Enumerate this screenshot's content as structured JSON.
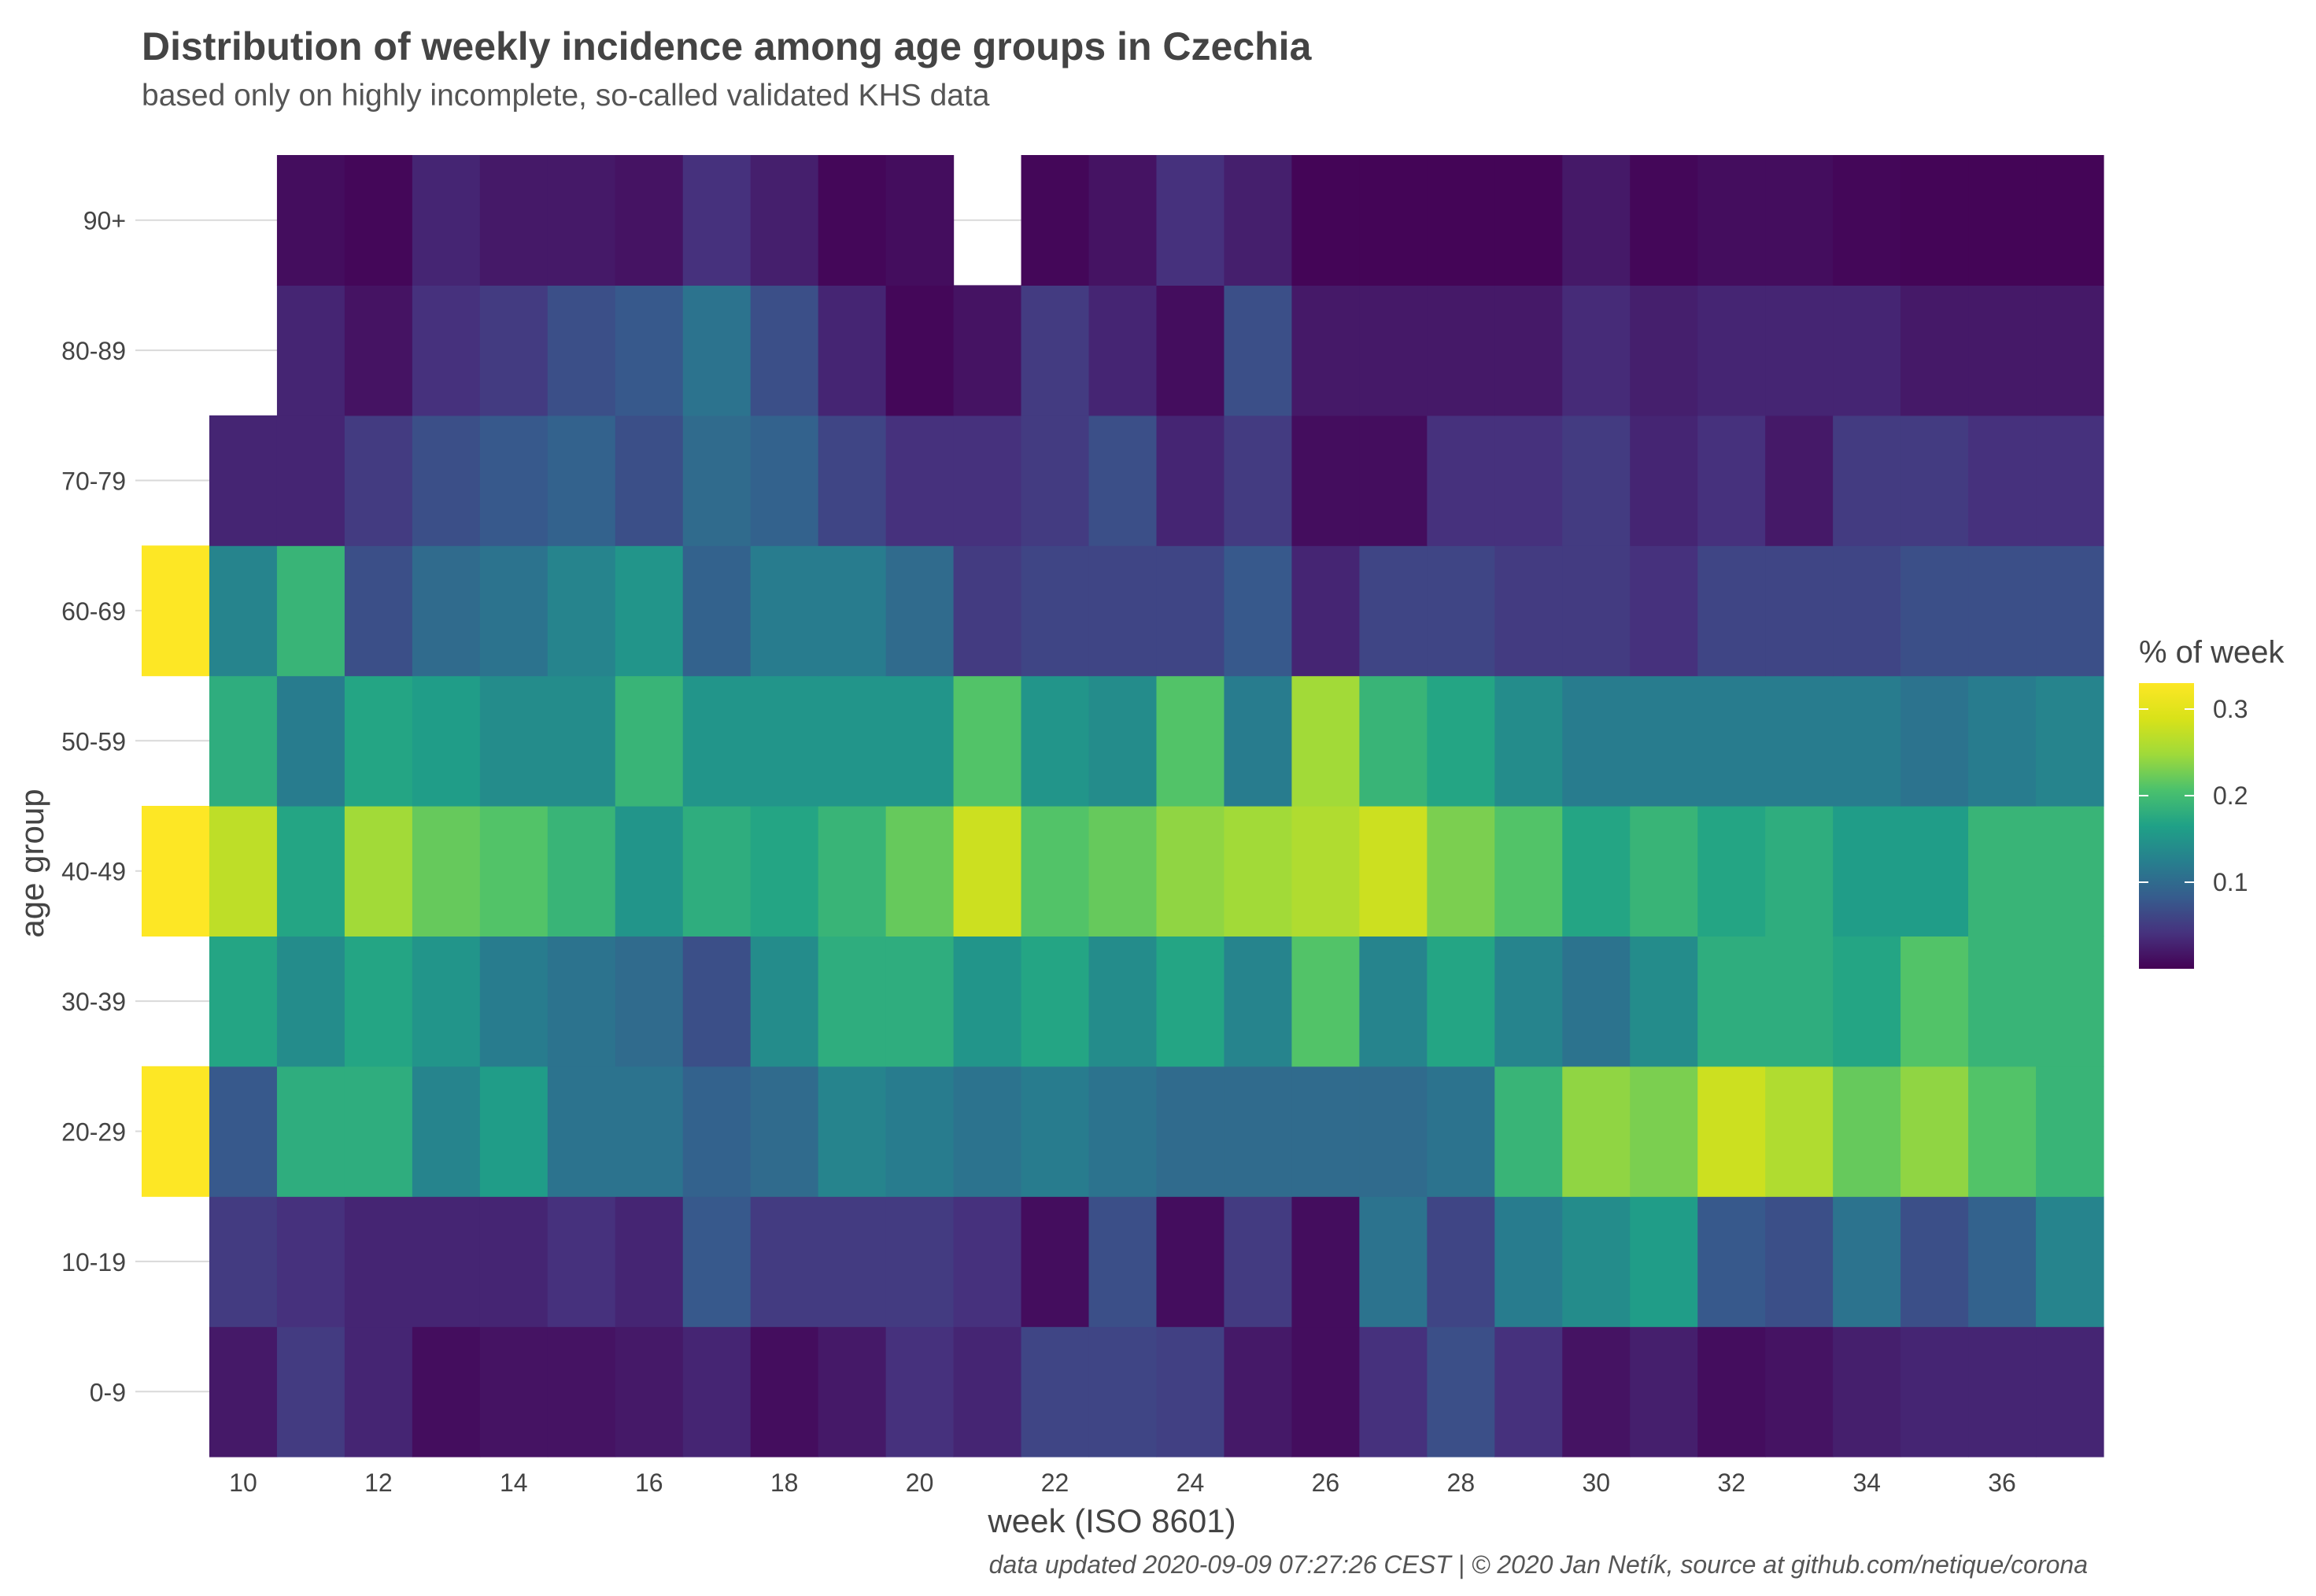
{
  "chart_data": {
    "type": "heatmap",
    "title": "Distribution of weekly incidence among age groups in Czechia",
    "subtitle": "based only on highly incomplete, so-called validated KHS data",
    "xlabel": "week (ISO 8601)",
    "ylabel": "age group",
    "caption": "data updated 2020-09-09 07:27:26 CEST  |  © 2020 Jan Netík, source at github.com/netique/corona",
    "x": [
      9,
      10,
      11,
      12,
      13,
      14,
      15,
      16,
      17,
      18,
      19,
      20,
      21,
      22,
      23,
      24,
      25,
      26,
      27,
      28,
      29,
      30,
      31,
      32,
      33,
      34,
      35,
      36,
      37
    ],
    "x_ticks": [
      10,
      12,
      14,
      16,
      18,
      20,
      22,
      24,
      26,
      28,
      30,
      32,
      34,
      36
    ],
    "y_categories": [
      "0-9",
      "10-19",
      "20-29",
      "30-39",
      "40-49",
      "50-59",
      "60-69",
      "70-79",
      "80-89",
      "90+"
    ],
    "grid": true,
    "legend": {
      "title": "% of week",
      "position": "right",
      "ticks": [
        0.1,
        0.2,
        0.3
      ],
      "range": [
        0.0,
        0.33
      ],
      "colormap": "viridis"
    },
    "values": {
      "0-9": [
        null,
        0.02,
        0.05,
        0.03,
        0.01,
        0.015,
        0.015,
        0.02,
        0.03,
        0.01,
        0.02,
        0.04,
        0.03,
        0.06,
        0.06,
        0.055,
        0.02,
        0.01,
        0.04,
        0.07,
        0.04,
        0.015,
        0.025,
        0.01,
        0.015,
        0.025,
        0.03,
        0.03,
        0.03
      ],
      "10-19": [
        null,
        0.05,
        0.04,
        0.03,
        0.03,
        0.03,
        0.04,
        0.03,
        0.08,
        0.05,
        0.05,
        0.05,
        0.04,
        0.01,
        0.07,
        0.01,
        0.05,
        0.01,
        0.11,
        0.06,
        0.12,
        0.14,
        0.16,
        0.08,
        0.07,
        0.11,
        0.07,
        0.09,
        0.13
      ],
      "20-29": [
        0.33,
        0.08,
        0.18,
        0.18,
        0.13,
        0.16,
        0.11,
        0.11,
        0.09,
        0.1,
        0.13,
        0.12,
        0.11,
        0.12,
        0.11,
        0.1,
        0.1,
        0.1,
        0.1,
        0.11,
        0.19,
        0.24,
        0.23,
        0.28,
        0.26,
        0.22,
        0.24,
        0.21,
        0.19
      ],
      "30-39": [
        null,
        0.17,
        0.14,
        0.17,
        0.15,
        0.12,
        0.11,
        0.1,
        0.07,
        0.14,
        0.18,
        0.18,
        0.15,
        0.17,
        0.14,
        0.17,
        0.13,
        0.21,
        0.13,
        0.17,
        0.13,
        0.11,
        0.14,
        0.18,
        0.18,
        0.17,
        0.21,
        0.19,
        0.19
      ],
      "40-49": [
        0.33,
        0.27,
        0.17,
        0.25,
        0.22,
        0.21,
        0.19,
        0.15,
        0.18,
        0.17,
        0.19,
        0.22,
        0.28,
        0.21,
        0.22,
        0.24,
        0.25,
        0.26,
        0.28,
        0.23,
        0.21,
        0.17,
        0.19,
        0.17,
        0.18,
        0.16,
        0.16,
        0.19,
        0.19
      ],
      "50-59": [
        null,
        0.18,
        0.12,
        0.17,
        0.16,
        0.14,
        0.14,
        0.19,
        0.15,
        0.15,
        0.15,
        0.15,
        0.21,
        0.15,
        0.14,
        0.21,
        0.12,
        0.25,
        0.19,
        0.17,
        0.14,
        0.12,
        0.12,
        0.12,
        0.12,
        0.12,
        0.11,
        0.12,
        0.13
      ],
      "60-69": [
        0.33,
        0.13,
        0.19,
        0.07,
        0.1,
        0.11,
        0.13,
        0.15,
        0.09,
        0.12,
        0.12,
        0.1,
        0.05,
        0.06,
        0.06,
        0.06,
        0.08,
        0.03,
        0.06,
        0.06,
        0.05,
        0.05,
        0.04,
        0.06,
        0.06,
        0.06,
        0.07,
        0.07,
        0.07
      ],
      "70-79": [
        null,
        0.03,
        0.03,
        0.05,
        0.07,
        0.08,
        0.09,
        0.07,
        0.1,
        0.09,
        0.06,
        0.04,
        0.04,
        0.05,
        0.07,
        0.03,
        0.05,
        0.01,
        0.01,
        0.04,
        0.04,
        0.05,
        0.03,
        0.04,
        0.02,
        0.05,
        0.05,
        0.04,
        0.04
      ],
      "80-89": [
        null,
        null,
        0.03,
        0.015,
        0.04,
        0.05,
        0.07,
        0.08,
        0.11,
        0.07,
        0.03,
        0.005,
        0.015,
        0.05,
        0.03,
        0.01,
        0.07,
        0.02,
        0.02,
        0.02,
        0.02,
        0.035,
        0.025,
        0.03,
        0.03,
        0.03,
        0.02,
        0.02,
        0.02
      ],
      "90+": [
        null,
        null,
        0.01,
        0.005,
        0.03,
        0.02,
        0.02,
        0.015,
        0.04,
        0.025,
        0.005,
        0.01,
        null,
        0.005,
        0.015,
        0.04,
        0.025,
        0.003,
        0.003,
        0.003,
        0.003,
        0.02,
        0.005,
        0.01,
        0.01,
        0.005,
        0.003,
        0.003,
        0.003
      ]
    }
  }
}
